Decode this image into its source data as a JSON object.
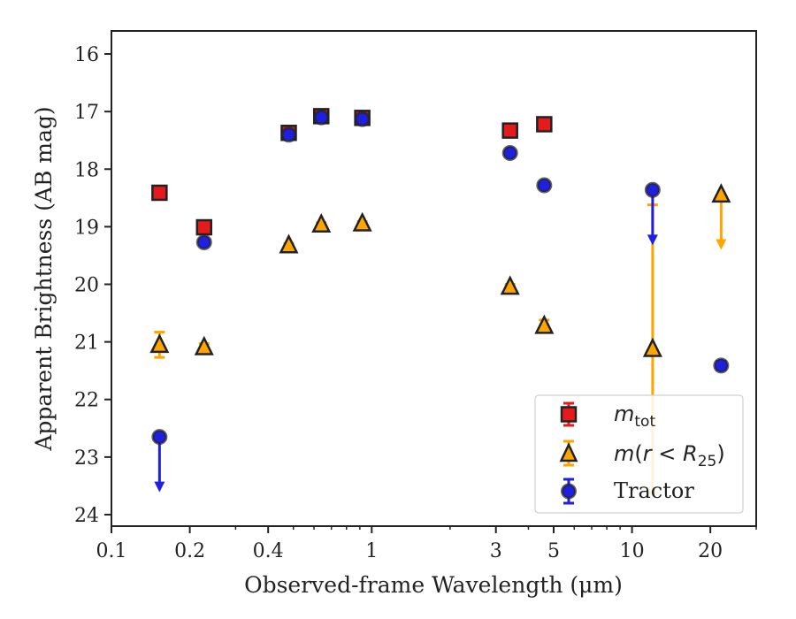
{
  "chart_data": {
    "type": "scatter",
    "xscale": "log",
    "xlim": [
      0.1,
      30
    ],
    "ylim": [
      24.2,
      15.6
    ],
    "y_inverted": true,
    "xlabel": "Observed-frame Wavelength (μm)",
    "ylabel": "Apparent Brightness (AB mag)",
    "xticks": [
      0.1,
      0.2,
      0.4,
      1,
      3,
      5,
      10,
      20
    ],
    "xtick_labels": [
      "0.1",
      "0.2",
      "0.4",
      "1",
      "3",
      "5",
      "10",
      "20"
    ],
    "yticks": [
      16,
      17,
      18,
      19,
      20,
      21,
      22,
      23,
      24
    ],
    "ytick_labels": [
      "16",
      "17",
      "18",
      "19",
      "20",
      "21",
      "22",
      "23",
      "24"
    ],
    "legend": {
      "placement": "lower right",
      "entries": [
        "m_tot",
        "m(r < R_25)",
        "Tractor"
      ]
    },
    "series": [
      {
        "name": "m_tot",
        "marker": "square",
        "color": "#e41a1c",
        "points": [
          {
            "x": 0.153,
            "y": 18.41,
            "err": 0.05
          },
          {
            "x": 0.227,
            "y": 19.01,
            "err": 0.05
          },
          {
            "x": 0.48,
            "y": 17.37,
            "err": 0.03
          },
          {
            "x": 0.64,
            "y": 17.08,
            "err": 0.03
          },
          {
            "x": 0.92,
            "y": 17.11,
            "err": 0.03
          },
          {
            "x": 3.4,
            "y": 17.33,
            "err": 0.03
          },
          {
            "x": 4.6,
            "y": 17.22,
            "err": 0.03
          }
        ]
      },
      {
        "name": "m(r < R_25)",
        "marker": "triangle",
        "color": "#ffa500",
        "points": [
          {
            "x": 0.153,
            "y": 21.05,
            "err": 0.22
          },
          {
            "x": 0.227,
            "y": 21.09,
            "err": 0.06
          },
          {
            "x": 0.48,
            "y": 19.32,
            "err": 0.03
          },
          {
            "x": 0.64,
            "y": 18.96,
            "err": 0.03
          },
          {
            "x": 0.92,
            "y": 18.94,
            "err": 0.03
          },
          {
            "x": 3.4,
            "y": 20.04,
            "err": 0.04
          },
          {
            "x": 4.6,
            "y": 20.72,
            "err": 0.1
          },
          {
            "x": 12.0,
            "y": 21.12,
            "err_low": 2.5,
            "err_high": 2.5
          },
          {
            "x": 22.0,
            "y": 18.44,
            "upper_limit": true
          }
        ]
      },
      {
        "name": "Tractor",
        "marker": "circle",
        "color": "#1f1fe0",
        "points": [
          {
            "x": 0.153,
            "y": 22.65,
            "upper_limit": true
          },
          {
            "x": 0.227,
            "y": 19.27,
            "err": 0.05
          },
          {
            "x": 0.48,
            "y": 17.4,
            "err": 0.03
          },
          {
            "x": 0.64,
            "y": 17.1,
            "err": 0.03
          },
          {
            "x": 0.92,
            "y": 17.13,
            "err": 0.03
          },
          {
            "x": 3.4,
            "y": 17.72,
            "err": 0.04
          },
          {
            "x": 4.6,
            "y": 18.28,
            "err": 0.05
          },
          {
            "x": 12.0,
            "y": 18.36,
            "upper_limit": true
          },
          {
            "x": 22.0,
            "y": 21.41,
            "err": 0.07
          }
        ]
      }
    ]
  }
}
